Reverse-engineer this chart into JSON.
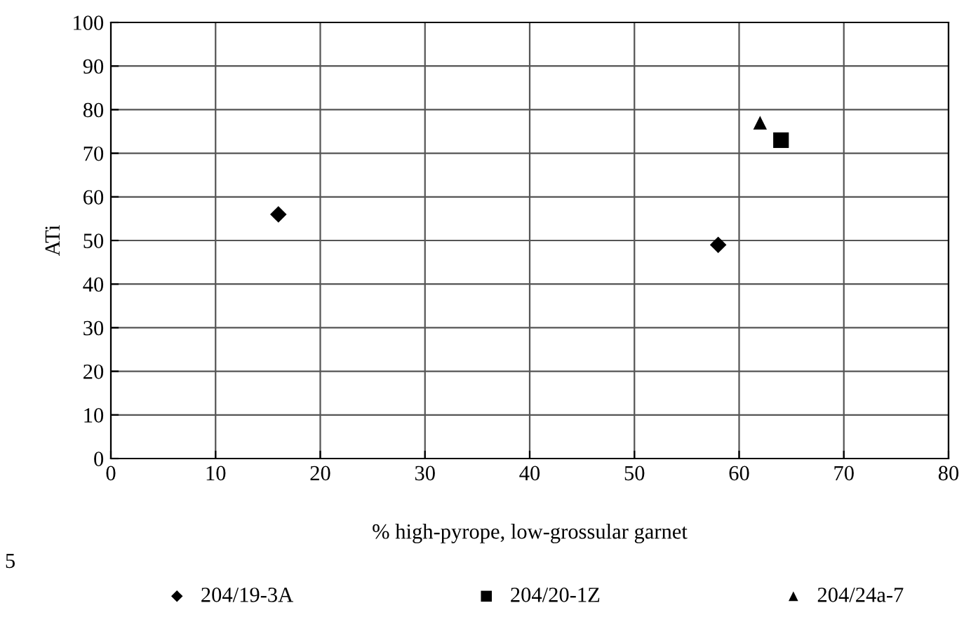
{
  "chart_data": {
    "type": "scatter",
    "xlabel": "% high-pyrope, low-grossular garnet",
    "ylabel": "ATi",
    "series": [
      {
        "name": "204/19-3A",
        "color": "#000000",
        "marker": "diamond",
        "x": [
          16,
          58
        ],
        "values": [
          56,
          49
        ]
      },
      {
        "name": "204/20-1Z",
        "color": "#000000",
        "marker": "square",
        "x": [
          64
        ],
        "values": [
          73
        ]
      },
      {
        "name": "204/24a-7",
        "color": "#000000",
        "marker": "triangle",
        "x": [
          62
        ],
        "values": [
          77
        ]
      }
    ],
    "xlim": [
      0,
      80
    ],
    "xticks": [
      0,
      10,
      20,
      30,
      40,
      50,
      60,
      70,
      80
    ],
    "ylim": [
      0,
      100
    ],
    "yticks": [
      0,
      10,
      20,
      30,
      40,
      50,
      60,
      70,
      80,
      90,
      100
    ],
    "grid": true,
    "legend": "bottom",
    "annotations": [
      "5"
    ]
  }
}
